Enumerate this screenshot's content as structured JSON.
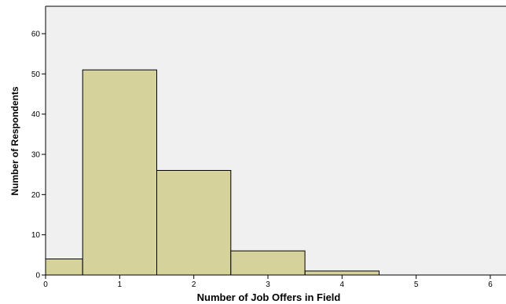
{
  "chart_data": {
    "type": "bar",
    "subtype": "histogram",
    "xlabel": "Number of Job Offers in Field",
    "ylabel": "Number of Respondents",
    "xlim": [
      0,
      6
    ],
    "ylim": [
      0,
      65
    ],
    "xticks": [
      0,
      1,
      2,
      3,
      4,
      5,
      6
    ],
    "yticks": [
      0,
      10,
      20,
      30,
      40,
      50,
      60
    ],
    "bins": [
      {
        "start": 0,
        "end": 0.5,
        "value": 4
      },
      {
        "start": 0.5,
        "end": 1.5,
        "value": 51
      },
      {
        "start": 1.5,
        "end": 2.5,
        "value": 26
      },
      {
        "start": 2.5,
        "end": 3.5,
        "value": 6
      },
      {
        "start": 3.5,
        "end": 4.5,
        "value": 1
      }
    ],
    "grid": false,
    "bar_color": "#d6d29c",
    "plot_background": "#f0f0f0"
  }
}
